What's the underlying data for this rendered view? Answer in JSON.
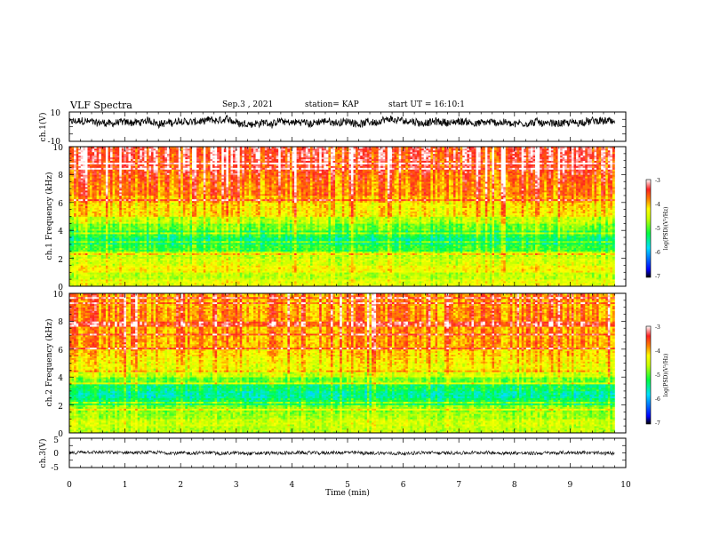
{
  "header": {
    "title": "VLF Spectra",
    "date": "Sep.3 , 2021",
    "station": "station= KAP",
    "start": "start UT = 16:10:1"
  },
  "chart_data": [
    {
      "type": "line",
      "panel": "ch1-waveform",
      "ylabel": "ch.1(V)",
      "ylim": [
        -10,
        10
      ],
      "yticks": [
        "10",
        "-10"
      ],
      "xlim": [
        0,
        10
      ],
      "trace_mean_approx": 3.0,
      "trace_spread_approx": 2.5,
      "trace_end_min": 9.8
    },
    {
      "type": "heatmap",
      "panel": "ch1-spectrogram",
      "ylabel": "ch.1 Frequency (kHz)",
      "ylim": [
        0,
        10
      ],
      "yticks": [
        "0",
        "2",
        "4",
        "6",
        "8",
        "10"
      ],
      "xlim": [
        0,
        10
      ],
      "data_end_min": 9.8,
      "colorbar": {
        "label": "log(PSD)(V²/Hz)",
        "range": [
          -7,
          -3
        ],
        "ticks": [
          "-3",
          "-4",
          "-5",
          "-6",
          "-7"
        ]
      },
      "rows_log_psd": [
        {
          "f": 0.25,
          "v": -4.4
        },
        {
          "f": 0.75,
          "v": -4.6
        },
        {
          "f": 1.25,
          "v": -4.3
        },
        {
          "f": 1.75,
          "v": -4.5
        },
        {
          "f": 2.25,
          "v": -4.6
        },
        {
          "f": 2.75,
          "v": -5.1
        },
        {
          "f": 3.25,
          "v": -5.4
        },
        {
          "f": 3.75,
          "v": -5.2
        },
        {
          "f": 4.25,
          "v": -4.9
        },
        {
          "f": 4.75,
          "v": -4.6
        },
        {
          "f": 5.25,
          "v": -4.2
        },
        {
          "f": 5.75,
          "v": -4.2
        },
        {
          "f": 6.25,
          "v": -4.0
        },
        {
          "f": 6.75,
          "v": -3.8
        },
        {
          "f": 7.25,
          "v": -3.8
        },
        {
          "f": 7.75,
          "v": -3.7
        },
        {
          "f": 8.25,
          "v": -3.6
        },
        {
          "f": 8.75,
          "v": -3.5
        },
        {
          "f": 9.25,
          "v": -3.4
        },
        {
          "f": 9.75,
          "v": -3.4
        }
      ]
    },
    {
      "type": "heatmap",
      "panel": "ch2-spectrogram",
      "ylabel": "ch.2 Frequency (kHz)",
      "ylim": [
        0,
        10
      ],
      "yticks": [
        "0",
        "2",
        "4",
        "6",
        "8",
        "10"
      ],
      "xlim": [
        0,
        10
      ],
      "data_end_min": 9.8,
      "colorbar": {
        "label": "log(PSD)(V²/Hz)",
        "range": [
          -7,
          -3
        ],
        "ticks": [
          "-3",
          "-4",
          "-5",
          "-6",
          "-7"
        ]
      },
      "rows_log_psd": [
        {
          "f": 0.25,
          "v": -4.6
        },
        {
          "f": 0.75,
          "v": -4.5
        },
        {
          "f": 1.25,
          "v": -4.7
        },
        {
          "f": 1.75,
          "v": -4.8
        },
        {
          "f": 2.25,
          "v": -5.3
        },
        {
          "f": 2.75,
          "v": -5.5
        },
        {
          "f": 3.25,
          "v": -5.3
        },
        {
          "f": 3.75,
          "v": -4.9
        },
        {
          "f": 4.25,
          "v": -4.5
        },
        {
          "f": 4.75,
          "v": -4.3
        },
        {
          "f": 5.25,
          "v": -4.2
        },
        {
          "f": 5.75,
          "v": -4.1
        },
        {
          "f": 6.25,
          "v": -3.9
        },
        {
          "f": 6.75,
          "v": -3.9
        },
        {
          "f": 7.25,
          "v": -3.9
        },
        {
          "f": 7.75,
          "v": -3.9
        },
        {
          "f": 8.25,
          "v": -3.8
        },
        {
          "f": 8.75,
          "v": -3.8
        },
        {
          "f": 9.25,
          "v": -3.9
        },
        {
          "f": 9.75,
          "v": -3.8
        }
      ]
    },
    {
      "type": "line",
      "panel": "ch3-waveform",
      "ylabel": "ch.3(V)",
      "ylim": [
        -5,
        5
      ],
      "yticks": [
        "5",
        "0",
        "-5"
      ],
      "xlim": [
        0,
        10
      ],
      "xlabel": "Time (min)",
      "xticks": [
        "0",
        "1",
        "2",
        "3",
        "4",
        "5",
        "6",
        "7",
        "8",
        "9",
        "10"
      ],
      "trace_mean_approx": 0.0,
      "trace_spread_approx": 0.6,
      "trace_end_min": 9.8
    }
  ]
}
